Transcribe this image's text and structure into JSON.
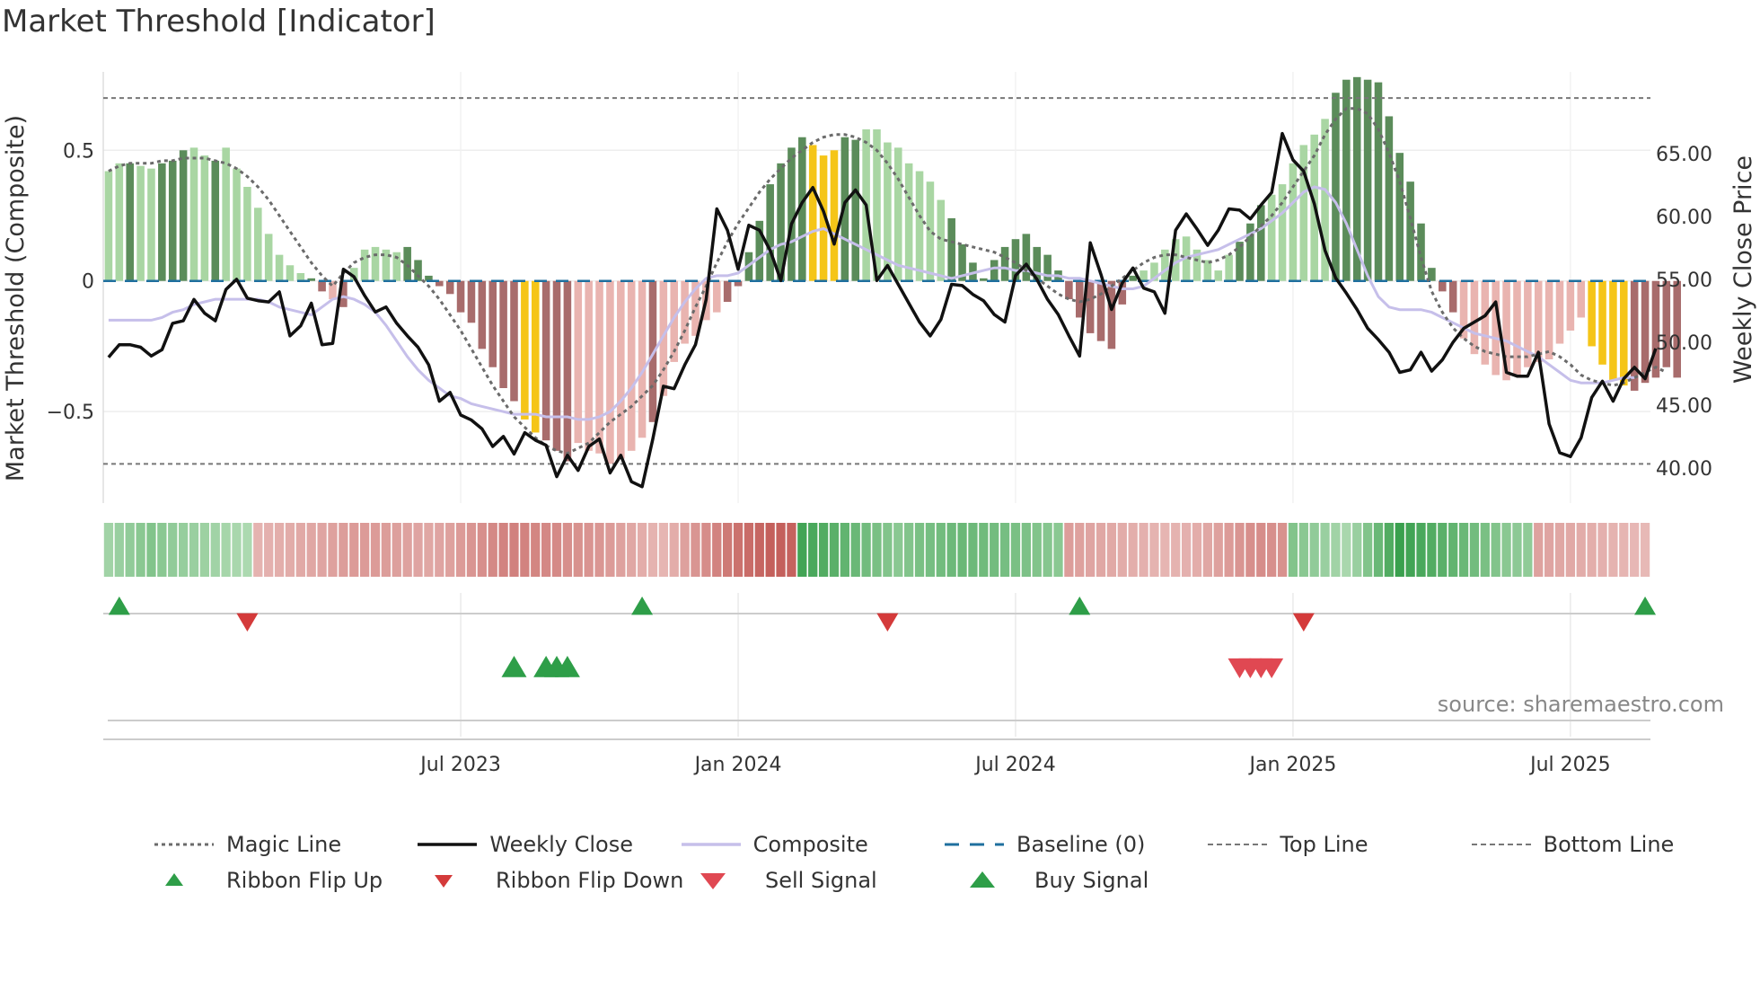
{
  "title": "Market Threshold [Indicator]",
  "source": "source: sharemaestro.com",
  "colors": {
    "green_dark": "#5b8c5a",
    "green_light": "#a9d6a3",
    "red_dark": "#a86c6c",
    "red_light": "#e9b4b0",
    "gold": "#f5c518",
    "magic": "#6b6b6b",
    "close": "#111111",
    "composite": "#c6bfea",
    "baseline": "#1f6f9e",
    "flip_up": "#2e9e48",
    "flip_down": "#d43a3a",
    "sell": "#e04852",
    "buy": "#2e9e48"
  },
  "chart_data": {
    "type": "bar",
    "title": "Market Threshold [Indicator]",
    "ylabel_left": "Market Threshold (Composite)",
    "ylabel_right": "Weekly Close Price",
    "ylim_left": [
      -0.85,
      0.8
    ],
    "ylim_right": [
      37.2,
      71.5
    ],
    "yticks_left": [
      0.5,
      0,
      -0.5
    ],
    "yticks_left_labels": [
      "0.5",
      "0",
      "−0.5"
    ],
    "yticks_right": [
      65,
      60,
      55,
      50,
      45,
      40
    ],
    "yticks_right_labels": [
      "65.00",
      "60.00",
      "55.00",
      "50.00",
      "45.00",
      "40.00"
    ],
    "top_line": 0.7,
    "bottom_line": -0.7,
    "baseline": 0,
    "x_tick_labels": [
      {
        "week": 33,
        "label": "Jul 2023"
      },
      {
        "week": 59,
        "label": "Jan 2024"
      },
      {
        "week": 85,
        "label": "Jul 2024"
      },
      {
        "week": 111,
        "label": "Jan 2025"
      },
      {
        "week": 137,
        "label": "Jul 2025"
      }
    ],
    "weeks": 145,
    "composite_bars": [
      0.42,
      0.45,
      0.45,
      0.44,
      0.43,
      0.45,
      0.46,
      0.5,
      0.51,
      0.48,
      0.46,
      0.51,
      0.43,
      0.36,
      0.28,
      0.18,
      0.1,
      0.06,
      0.03,
      0.01,
      -0.04,
      -0.07,
      -0.1,
      0.05,
      0.12,
      0.13,
      0.12,
      0.11,
      0.13,
      0.08,
      0.02,
      -0.02,
      -0.05,
      -0.12,
      -0.16,
      -0.26,
      -0.33,
      -0.41,
      -0.46,
      -0.53,
      -0.58,
      -0.61,
      -0.65,
      -0.69,
      -0.62,
      -0.65,
      -0.66,
      -0.7,
      -0.68,
      -0.65,
      -0.6,
      -0.54,
      -0.44,
      -0.31,
      -0.24,
      -0.21,
      -0.15,
      -0.12,
      -0.08,
      -0.02,
      0.11,
      0.23,
      0.37,
      0.45,
      0.51,
      0.55,
      0.52,
      0.48,
      0.5,
      0.55,
      0.54,
      0.58,
      0.58,
      0.53,
      0.51,
      0.45,
      0.42,
      0.38,
      0.31,
      0.24,
      0.14,
      0.07,
      0.01,
      0.08,
      0.13,
      0.16,
      0.18,
      0.13,
      0.1,
      0.04,
      -0.07,
      -0.14,
      -0.2,
      -0.23,
      -0.26,
      -0.09,
      0.02,
      0.04,
      0.07,
      0.12,
      0.16,
      0.17,
      0.12,
      0.08,
      0.04,
      0.1,
      0.15,
      0.22,
      0.29,
      0.33,
      0.37,
      0.45,
      0.52,
      0.56,
      0.62,
      0.72,
      0.77,
      0.78,
      0.77,
      0.76,
      0.63,
      0.49,
      0.38,
      0.22,
      0.05,
      -0.04,
      -0.12,
      -0.22,
      -0.28,
      -0.32,
      -0.36,
      -0.38,
      -0.36,
      -0.33,
      -0.31,
      -0.3,
      -0.24,
      -0.19,
      -0.14,
      -0.25,
      -0.32,
      -0.38,
      -0.4,
      -0.42,
      -0.39,
      -0.37,
      -0.33,
      -0.37
    ],
    "bar_color_codes": "lldlldddlldlllll-llddldllllldddddddddddggdddllllllldllllllddddddddgggddllllllllddddddddddddddddddllllllllldddllllllddddddddddddllllllllllllggggdddddddddddddddddddddddllllllllldddddddddddddddddl",
    "magic_line": [
      0.42,
      0.44,
      0.45,
      0.45,
      0.45,
      0.46,
      0.46,
      0.47,
      0.47,
      0.47,
      0.46,
      0.45,
      0.43,
      0.4,
      0.36,
      0.31,
      0.25,
      0.19,
      0.13,
      0.07,
      0.02,
      -0.02,
      0.03,
      0.07,
      0.09,
      0.1,
      0.1,
      0.09,
      0.06,
      0.02,
      -0.02,
      -0.07,
      -0.13,
      -0.19,
      -0.26,
      -0.33,
      -0.4,
      -0.46,
      -0.52,
      -0.56,
      -0.6,
      -0.63,
      -0.65,
      -0.66,
      -0.64,
      -0.62,
      -0.58,
      -0.54,
      -0.51,
      -0.48,
      -0.44,
      -0.4,
      -0.34,
      -0.27,
      -0.19,
      -0.1,
      -0.02,
      0.07,
      0.15,
      0.22,
      0.28,
      0.34,
      0.39,
      0.43,
      0.47,
      0.5,
      0.53,
      0.55,
      0.56,
      0.56,
      0.55,
      0.53,
      0.5,
      0.45,
      0.39,
      0.32,
      0.25,
      0.19,
      0.16,
      0.15,
      0.14,
      0.13,
      0.12,
      0.11,
      0.09,
      0.07,
      0.04,
      0.01,
      -0.02,
      -0.05,
      -0.07,
      -0.08,
      -0.07,
      -0.05,
      -0.02,
      0.01,
      0.04,
      0.07,
      0.09,
      0.1,
      0.1,
      0.09,
      0.08,
      0.07,
      0.08,
      0.1,
      0.13,
      0.17,
      0.21,
      0.25,
      0.3,
      0.36,
      0.42,
      0.48,
      0.56,
      0.62,
      0.66,
      0.66,
      0.64,
      0.58,
      0.49,
      0.38,
      0.24,
      0.09,
      -0.04,
      -0.12,
      -0.18,
      -0.22,
      -0.25,
      -0.27,
      -0.28,
      -0.29,
      -0.29,
      -0.29,
      -0.28,
      -0.27,
      -0.29,
      -0.32,
      -0.36,
      -0.38,
      -0.39,
      -0.4,
      -0.39,
      -0.37,
      -0.35,
      -0.33,
      -0.35
    ],
    "composite_line": [
      -0.15,
      -0.15,
      -0.15,
      -0.15,
      -0.15,
      -0.14,
      -0.12,
      -0.11,
      -0.09,
      -0.08,
      -0.07,
      -0.07,
      -0.07,
      -0.07,
      -0.07,
      -0.08,
      -0.1,
      -0.11,
      -0.12,
      -0.13,
      -0.1,
      -0.07,
      -0.06,
      -0.07,
      -0.09,
      -0.12,
      -0.17,
      -0.23,
      -0.29,
      -0.34,
      -0.38,
      -0.41,
      -0.44,
      -0.45,
      -0.47,
      -0.48,
      -0.49,
      -0.5,
      -0.51,
      -0.51,
      -0.51,
      -0.52,
      -0.52,
      -0.52,
      -0.53,
      -0.53,
      -0.52,
      -0.5,
      -0.46,
      -0.41,
      -0.35,
      -0.28,
      -0.21,
      -0.14,
      -0.08,
      -0.03,
      0.01,
      0.02,
      0.02,
      0.03,
      0.06,
      0.09,
      0.12,
      0.14,
      0.15,
      0.17,
      0.19,
      0.2,
      0.18,
      0.16,
      0.14,
      0.12,
      0.1,
      0.08,
      0.06,
      0.05,
      0.04,
      0.03,
      0.02,
      0.01,
      0.02,
      0.03,
      0.04,
      0.05,
      0.05,
      0.04,
      0.04,
      0.03,
      0.02,
      0.02,
      0.01,
      0.01,
      0.0,
      -0.01,
      -0.02,
      -0.03,
      -0.03,
      -0.02,
      0.01,
      0.04,
      0.07,
      0.09,
      0.1,
      0.11,
      0.12,
      0.14,
      0.16,
      0.18,
      0.2,
      0.23,
      0.26,
      0.3,
      0.34,
      0.36,
      0.35,
      0.3,
      0.22,
      0.12,
      0.02,
      -0.06,
      -0.1,
      -0.11,
      -0.11,
      -0.11,
      -0.12,
      -0.14,
      -0.16,
      -0.18,
      -0.2,
      -0.21,
      -0.22,
      -0.23,
      -0.25,
      -0.27,
      -0.29,
      -0.32,
      -0.35,
      -0.38,
      -0.39,
      -0.39,
      -0.39,
      -0.38,
      -0.37,
      -0.37
    ],
    "weekly_close": [
      48.8,
      49.8,
      49.8,
      49.6,
      48.9,
      49.4,
      51.5,
      51.7,
      53.4,
      52.3,
      51.7,
      54.2,
      55.0,
      53.5,
      53.3,
      53.2,
      54.0,
      50.5,
      51.3,
      53.1,
      49.8,
      49.9,
      55.8,
      55.2,
      53.7,
      52.4,
      52.8,
      51.5,
      50.5,
      49.6,
      48.2,
      45.3,
      46.0,
      44.2,
      43.8,
      43.1,
      41.7,
      42.5,
      41.1,
      42.8,
      42.2,
      41.8,
      39.3,
      41.0,
      39.8,
      41.7,
      42.3,
      39.6,
      41.0,
      38.9,
      38.5,
      42.3,
      46.5,
      46.3,
      48.2,
      49.8,
      53.4,
      60.6,
      58.9,
      55.8,
      59.3,
      58.9,
      57.3,
      54.9,
      59.4,
      61.1,
      62.3,
      60.4,
      57.8,
      61.1,
      62.1,
      60.9,
      54.9,
      56.1,
      54.6,
      53.1,
      51.6,
      50.5,
      51.8,
      54.6,
      54.5,
      53.8,
      53.3,
      52.2,
      51.6,
      55.3,
      56.2,
      55.0,
      53.4,
      52.2,
      50.5,
      48.9,
      57.9,
      55.4,
      52.6,
      54.7,
      55.9,
      54.3,
      54.0,
      52.3,
      58.9,
      60.2,
      59.0,
      57.7,
      58.9,
      60.6,
      60.5,
      59.8,
      60.9,
      61.9,
      66.6,
      64.5,
      63.6,
      61.0,
      57.3,
      55.1,
      53.9,
      52.6,
      51.1,
      50.2,
      49.2,
      47.6,
      47.8,
      49.2,
      47.7,
      48.6,
      50.0,
      51.1,
      51.6,
      52.1,
      53.2,
      47.6,
      47.3,
      47.3,
      49.2,
      43.5,
      41.2,
      40.9,
      42.4,
      45.6,
      46.9,
      45.3,
      47.1,
      48.0,
      47.1,
      49.5
    ],
    "ribbon": {
      "pattern": "ttGGGGGGGGGGGGRRRRRRRRRRRRRRRRRRRRRRRRRRRRRRRRRRRRRRRRRRRRRRRRRRRGGGGGGGGGGGGGGGGGGGGGGGGGRRRRRRRRRRRRRRRRRRRRRGGGGGGGGGGGGGGGGGGGGGGGRRRRRRRRRRRRRRRRRRRRRRRRRRRRRRRRRRG",
      "intensity": [
        0.35,
        0.4,
        0.45,
        0.5,
        0.55,
        0.5,
        0.45,
        0.42,
        0.4,
        0.38,
        0.35,
        0.32,
        0.3,
        0.28,
        0.3,
        0.32,
        0.34,
        0.36,
        0.38,
        0.4,
        0.42,
        0.45,
        0.48,
        0.5,
        0.5,
        0.5,
        0.48,
        0.46,
        0.44,
        0.42,
        0.4,
        0.42,
        0.45,
        0.5,
        0.55,
        0.6,
        0.65,
        0.7,
        0.72,
        0.7,
        0.68,
        0.66,
        0.64,
        0.6,
        0.58,
        0.56,
        0.54,
        0.5,
        0.45,
        0.4,
        0.35,
        0.3,
        0.28,
        0.35,
        0.45,
        0.55,
        0.62,
        0.7,
        0.78,
        0.85,
        0.9,
        0.95,
        1.0,
        1.0,
        0.98,
        0.95,
        0.9,
        0.85,
        0.8,
        0.75,
        0.7,
        0.65,
        0.6,
        0.55,
        0.5,
        0.55,
        0.6,
        0.62,
        0.65,
        0.68,
        0.7,
        0.68,
        0.66,
        0.64,
        0.62,
        0.6,
        0.58,
        0.55,
        0.52,
        0.5,
        0.48,
        0.45,
        0.42,
        0.4,
        0.38,
        0.36,
        0.34,
        0.32,
        0.3,
        0.28,
        0.3,
        0.32,
        0.35,
        0.4,
        0.45,
        0.5,
        0.55,
        0.6,
        0.62,
        0.6,
        0.58,
        0.55,
        0.5,
        0.45,
        0.4,
        0.35,
        0.3,
        0.4,
        0.55,
        0.7,
        0.85,
        1.0,
        0.95,
        0.9,
        0.85,
        0.8,
        0.75,
        0.7,
        0.65,
        0.6,
        0.55,
        0.5,
        0.48,
        0.46,
        0.44,
        0.42,
        0.4,
        0.38,
        0.36,
        0.34,
        0.32,
        0.3,
        0.28,
        0.26,
        0.25,
        0.24,
        0.25
      ]
    },
    "ribbon_flip_up_weeks": [
      1,
      50,
      91,
      144
    ],
    "ribbon_flip_down_weeks": [
      13,
      73,
      112
    ],
    "buy_signal_weeks": [
      38,
      41,
      42,
      43
    ],
    "sell_signal_weeks": [
      106,
      107,
      108,
      109
    ]
  },
  "legend": {
    "row1": [
      "Magic Line",
      "Weekly Close",
      "Composite",
      "Baseline (0)",
      "Top Line",
      "Bottom Line"
    ],
    "row2": [
      "Ribbon Flip Up",
      "Ribbon Flip Down",
      "Sell Signal",
      "Buy Signal"
    ]
  }
}
